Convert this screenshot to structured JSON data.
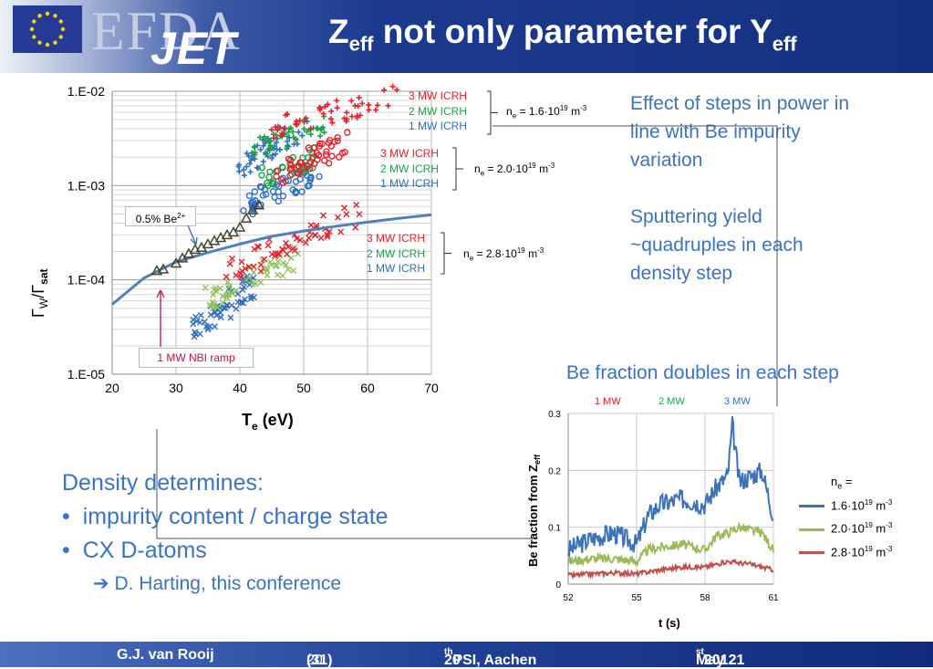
{
  "header": {
    "logo_efda": "EFDA",
    "logo_jet": "JET",
    "title_main": "Z",
    "title_sub1": "eff",
    "title_rest": " not only parameter for Y",
    "title_sub2": "eff"
  },
  "notes": {
    "effect_line1": "Effect of steps in power in",
    "effect_line2": "line with Be impurity",
    "effect_line3": "variation",
    "sputter_line1": "Sputtering yield",
    "sputter_line2": "~quadruples in each",
    "sputter_line3": "density step",
    "be_fraction": "Be fraction doubles in each step"
  },
  "density": {
    "heading": "Density determines:",
    "bullets": [
      "impurity content / charge state",
      "CX D-atoms"
    ],
    "sub": "D. Harting, this conference"
  },
  "footer": {
    "author": "G.J. van Rooij",
    "page": "20",
    "total": "(31)",
    "conf_num": "20",
    "conf_sup": "th",
    "conf_rest": " PSI, Aachen",
    "date_pre": "May 21",
    "date_sup": "st",
    "date_post": " 2012"
  },
  "chart_data": [
    {
      "type": "scatter",
      "xlabel": "T",
      "xlabel_sub": "e",
      "xlabel_unit": " (eV)",
      "ylabel_main": "Γ",
      "ylabel_sub1": "W",
      "ylabel_mid": "/Γ",
      "ylabel_sub2": "sat",
      "ylog": true,
      "ylim": [
        1e-05,
        0.01
      ],
      "xlim": [
        20,
        70
      ],
      "x_ticks": [
        "20",
        "30",
        "40",
        "50",
        "60",
        "70"
      ],
      "y_ticks": [
        "1.E-02",
        "1.E-03",
        "1.E-04",
        "1.E-05"
      ],
      "groups": [
        {
          "ne": "1.6",
          "labels": [
            "3 MW ICRH",
            "2 MW ICRH",
            "1 MW ICRH"
          ],
          "colors": [
            "#e8202a",
            "#1aa24a",
            "#2f6fc0"
          ]
        },
        {
          "ne": "2.0",
          "labels": [
            "3 MW ICRH",
            "2 MW ICRH",
            "1 MW ICRH"
          ],
          "colors": [
            "#e8202a",
            "#1aa24a",
            "#2f6fc0"
          ]
        },
        {
          "ne": "2.8",
          "labels": [
            "3 MW ICRH",
            "2 MW ICRH",
            "1 MW ICRH"
          ],
          "colors": [
            "#e8202a",
            "#1aa24a",
            "#2f6fc0"
          ]
        }
      ],
      "ne_prefix": "n",
      "ne_sub": "e",
      "ne_eq": " =  ",
      "ne_exp": "19",
      "ne_unit": " m",
      "ne_unit_exp": "-3",
      "model_curve": {
        "label": "0.5% Be",
        "label_sup": "2+",
        "x": [
          20,
          25,
          30,
          35,
          40,
          45,
          50,
          55,
          60,
          65,
          70
        ],
        "y": [
          5.5e-05,
          0.000105,
          0.000155,
          0.000195,
          0.00024,
          0.00029,
          0.00033,
          0.00037,
          0.00041,
          0.00045,
          0.00049
        ]
      },
      "nbi_ramp": {
        "label": "1 MW NBI ramp",
        "x": [
          27,
          28,
          30,
          31,
          32,
          33,
          34,
          35,
          36,
          37,
          38,
          39,
          40,
          41,
          42,
          43
        ],
        "y": [
          0.000125,
          0.00013,
          0.00015,
          0.00017,
          0.00019,
          0.00021,
          0.00022,
          0.00024,
          0.00026,
          0.00028,
          0.0003,
          0.00032,
          0.00036,
          0.00045,
          0.00055,
          0.00062
        ]
      }
    },
    {
      "type": "line",
      "xlabel": "t (s)",
      "ylabel": "Be fraction from Z",
      "ylabel_sub": "eff",
      "xlim": [
        52,
        61
      ],
      "ylim": [
        0,
        0.3
      ],
      "x_ticks": [
        "52",
        "55",
        "58",
        "61"
      ],
      "y_ticks": [
        "0",
        "0.1",
        "0.2",
        "0.3"
      ],
      "top_labels": [
        "1 MW",
        "2 MW",
        "3 MW"
      ],
      "top_colors": [
        "#e8202a",
        "#1aa24a",
        "#2f6fc0"
      ],
      "legend_title_pre": "n",
      "legend_title_sub": "e",
      "legend_title_post": " =",
      "series": [
        {
          "name": "1.6·10",
          "sup": "19",
          "unit": " m",
          "unit_sup": "-3",
          "color": "#3c73b8",
          "t": [
            52,
            53,
            54,
            55,
            55.5,
            56,
            57,
            58,
            58.5,
            59,
            59.2,
            59.5,
            60,
            60.5,
            61
          ],
          "v": [
            0.06,
            0.08,
            0.09,
            0.07,
            0.12,
            0.14,
            0.15,
            0.14,
            0.17,
            0.19,
            0.28,
            0.18,
            0.19,
            0.2,
            0.12
          ]
        },
        {
          "name": "2.0·10",
          "sup": "19",
          "unit": " m",
          "unit_sup": "-3",
          "color": "#9bbb59",
          "t": [
            52,
            53,
            54,
            55,
            55.5,
            56,
            57,
            58,
            58.5,
            59,
            59.5,
            60,
            60.5,
            61
          ],
          "v": [
            0.04,
            0.045,
            0.045,
            0.04,
            0.06,
            0.065,
            0.07,
            0.06,
            0.085,
            0.09,
            0.1,
            0.095,
            0.09,
            0.06
          ]
        },
        {
          "name": "2.8·10",
          "sup": "19",
          "unit": " m",
          "unit_sup": "-3",
          "color": "#c0504d",
          "t": [
            52,
            53,
            54,
            55,
            56,
            57,
            58,
            59,
            60,
            61
          ],
          "v": [
            0.015,
            0.018,
            0.02,
            0.018,
            0.025,
            0.03,
            0.03,
            0.04,
            0.035,
            0.025
          ]
        }
      ]
    }
  ]
}
